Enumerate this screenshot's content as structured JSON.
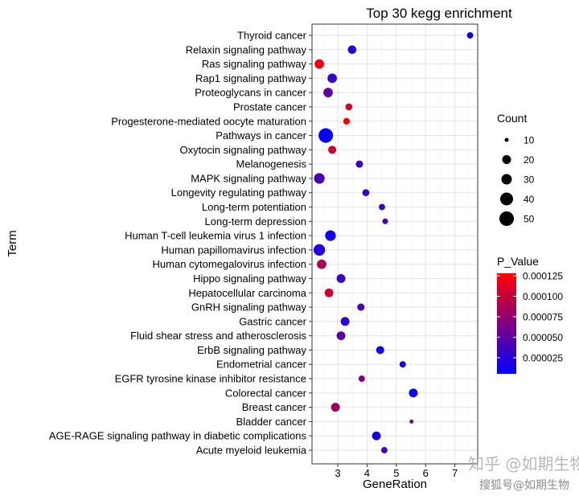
{
  "chart_data": {
    "type": "scatter",
    "title": "Top 30 kegg enrichment",
    "xlabel": "GeneRation",
    "ylabel": "Term",
    "xlim": [
      2.12,
      7.78
    ],
    "xticks": [
      3,
      4,
      5,
      6,
      7
    ],
    "grid": true,
    "legend_placement": "right",
    "size_legend": {
      "title": "Count",
      "values": [
        10,
        20,
        30,
        40,
        50
      ]
    },
    "color_legend": {
      "title": "P_Value",
      "ticks": [
        "0.000125",
        "0.000100",
        "0.000075",
        "0.000050",
        "0.000025"
      ],
      "range": [
        3e-06,
        0.00013
      ],
      "low_color": "#0000FF",
      "high_color": "#FF0000"
    },
    "points": [
      {
        "term": "Thyroid cancer",
        "x": 7.52,
        "count": 10,
        "p": 8e-06
      },
      {
        "term": "Relaxin signaling pathway",
        "x": 3.49,
        "count": 18,
        "p": 2e-05
      },
      {
        "term": "Ras signaling pathway",
        "x": 2.37,
        "count": 22,
        "p": 0.00012
      },
      {
        "term": "Rap1 signaling pathway",
        "x": 2.81,
        "count": 22,
        "p": 3e-05
      },
      {
        "term": "Proteoglycans in cancer",
        "x": 2.67,
        "count": 22,
        "p": 5e-05
      },
      {
        "term": "Prostate cancer",
        "x": 3.38,
        "count": 12,
        "p": 0.00011
      },
      {
        "term": "Progesterone-mediated oocyte maturation",
        "x": 3.3,
        "count": 11,
        "p": 0.000125
      },
      {
        "term": "Pathways in cancer",
        "x": 2.59,
        "count": 52,
        "p": 5e-06
      },
      {
        "term": "Oxytocin signaling pathway",
        "x": 2.81,
        "count": 16,
        "p": 0.000105
      },
      {
        "term": "Melanogenesis",
        "x": 3.74,
        "count": 13,
        "p": 3e-05
      },
      {
        "term": "MAPK signaling pathway",
        "x": 2.37,
        "count": 28,
        "p": 4e-05
      },
      {
        "term": "Longevity regulating pathway",
        "x": 3.96,
        "count": 12,
        "p": 3e-05
      },
      {
        "term": "Long-term potentiation",
        "x": 4.51,
        "count": 10,
        "p": 3e-05
      },
      {
        "term": "Long-term depression",
        "x": 4.62,
        "count": 8,
        "p": 4e-05
      },
      {
        "term": "Human T-cell leukemia virus 1 infection",
        "x": 2.75,
        "count": 28,
        "p": 1e-05
      },
      {
        "term": "Human papillomavirus infection",
        "x": 2.37,
        "count": 33,
        "p": 2e-05
      },
      {
        "term": "Human cytomegalovirus infection",
        "x": 2.45,
        "count": 22,
        "p": 9e-05
      },
      {
        "term": "Hippo signaling pathway",
        "x": 3.11,
        "count": 19,
        "p": 3e-05
      },
      {
        "term": "Hepatocellular carcinoma",
        "x": 2.7,
        "count": 19,
        "p": 0.000105
      },
      {
        "term": "GnRH signaling pathway",
        "x": 3.79,
        "count": 13,
        "p": 4e-05
      },
      {
        "term": "Gastric cancer",
        "x": 3.25,
        "count": 19,
        "p": 2.5e-05
      },
      {
        "term": "Fluid shear stress and atherosclerosis",
        "x": 3.11,
        "count": 19,
        "p": 5e-05
      },
      {
        "term": "ErbB signaling pathway",
        "x": 4.45,
        "count": 16,
        "p": 1.5e-05
      },
      {
        "term": "Endometrial cancer",
        "x": 5.22,
        "count": 10,
        "p": 1.5e-05
      },
      {
        "term": "EGFR tyrosine kinase inhibitor resistance",
        "x": 3.82,
        "count": 10,
        "p": 7e-05
      },
      {
        "term": "Colorectal cancer",
        "x": 5.58,
        "count": 19,
        "p": 8e-06
      },
      {
        "term": "Breast cancer",
        "x": 2.92,
        "count": 19,
        "p": 8e-05
      },
      {
        "term": "Bladder cancer",
        "x": 5.52,
        "count": 4,
        "p": 5e-05
      },
      {
        "term": "AGE-RAGE signaling pathway in diabetic complications",
        "x": 4.32,
        "count": 19,
        "p": 1.2e-05
      },
      {
        "term": "Acute myeloid leukemia",
        "x": 4.59,
        "count": 10,
        "p": 4e-05
      }
    ]
  },
  "watermark": {
    "line1": "知乎 @如期生物",
    "line2": "搜狐号@如期生物"
  }
}
